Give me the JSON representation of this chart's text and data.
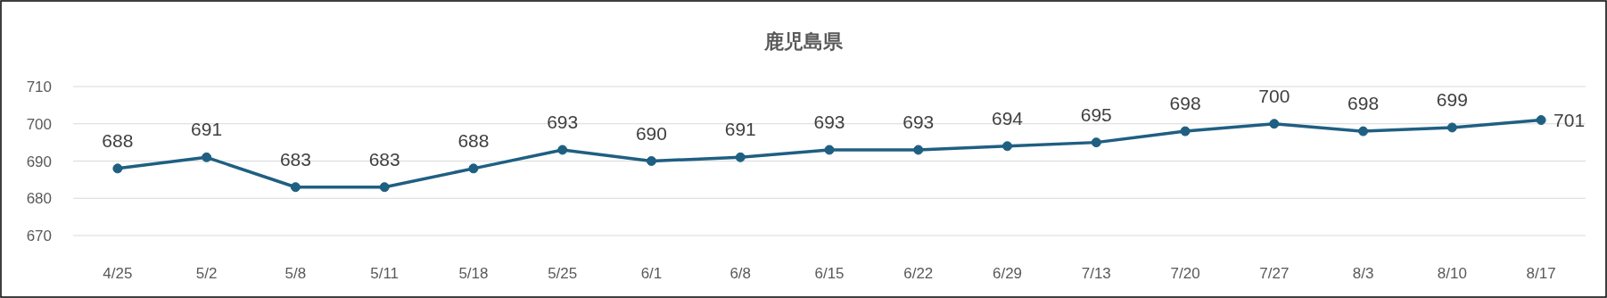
{
  "chart_data": {
    "type": "line",
    "title": "鹿児島県",
    "categories": [
      "4/25",
      "5/2",
      "5/8",
      "5/11",
      "5/18",
      "5/25",
      "6/1",
      "6/8",
      "6/15",
      "6/22",
      "6/29",
      "7/13",
      "7/20",
      "7/27",
      "8/3",
      "8/10",
      "8/17"
    ],
    "series": [
      {
        "color": "#1f5f82",
        "values": [
          688,
          691,
          683,
          683,
          688,
          693,
          690,
          691,
          693,
          693,
          694,
          695,
          698,
          700,
          698,
          699,
          701
        ]
      }
    ],
    "ylim": [
      670,
      710
    ],
    "yticks": [
      670,
      680,
      690,
      700,
      710
    ],
    "grid": "y",
    "data_labels": true,
    "marker": "circle",
    "line_style": "solid"
  }
}
